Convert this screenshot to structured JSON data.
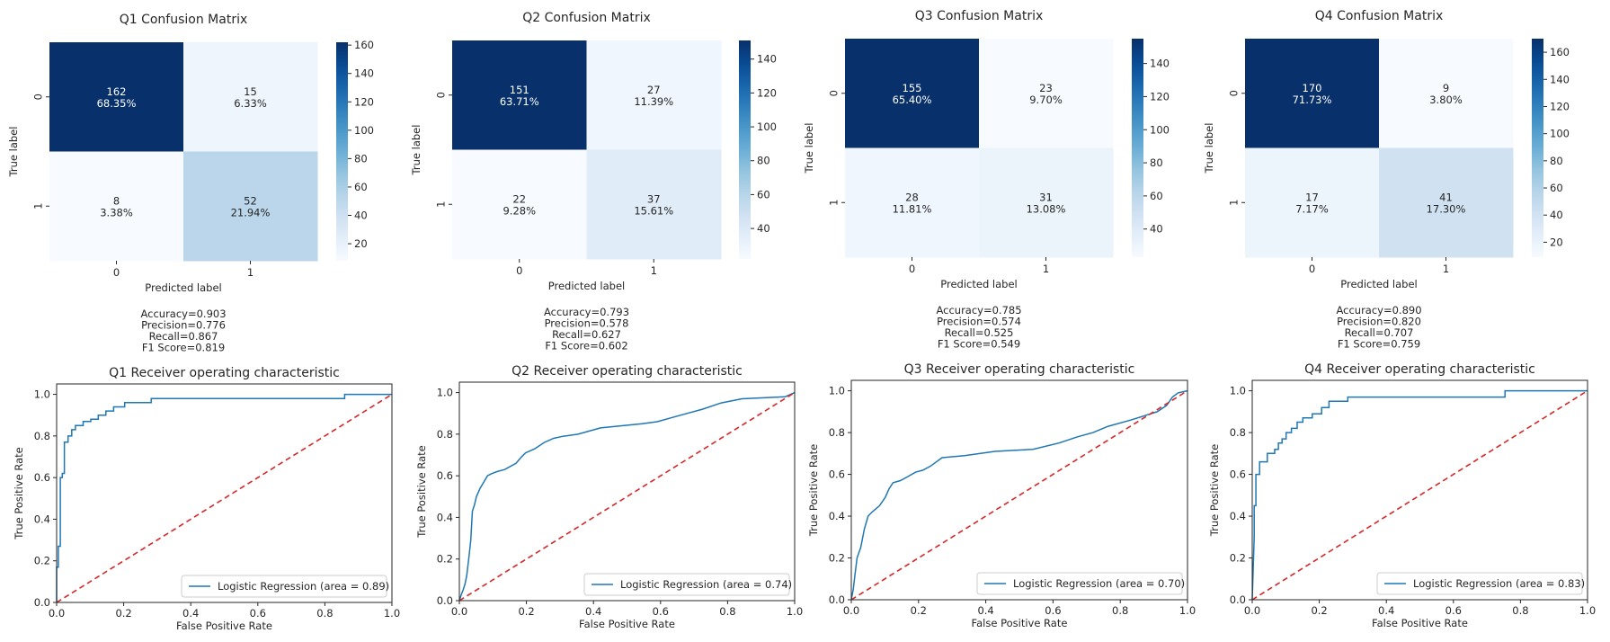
{
  "chart_data": [
    {
      "type": "heatmap",
      "title": "Q1 Confusion Matrix",
      "xlabel": "Predicted label",
      "ylabel": "True label",
      "x_ticks": [
        "0",
        "1"
      ],
      "y_ticks": [
        "0",
        "1"
      ],
      "values": [
        [
          162,
          15
        ],
        [
          8,
          52
        ]
      ],
      "percents": [
        [
          "68.35%",
          "6.33%"
        ],
        [
          "3.38%",
          "21.94%"
        ]
      ],
      "colorbar_ticks": [
        20,
        40,
        60,
        80,
        100,
        120,
        140,
        160
      ],
      "colorbar_range": [
        8,
        162
      ],
      "colormap": "Blues",
      "metrics": [
        "Accuracy=0.903",
        "Precision=0.776",
        "Recall=0.867",
        "F1 Score=0.819"
      ]
    },
    {
      "type": "heatmap",
      "title": "Q2 Confusion Matrix",
      "xlabel": "Predicted label",
      "ylabel": "True label",
      "x_ticks": [
        "0",
        "1"
      ],
      "y_ticks": [
        "0",
        "1"
      ],
      "values": [
        [
          151,
          27
        ],
        [
          22,
          37
        ]
      ],
      "percents": [
        [
          "63.71%",
          "11.39%"
        ],
        [
          "9.28%",
          "15.61%"
        ]
      ],
      "colorbar_ticks": [
        40,
        60,
        80,
        100,
        120,
        140
      ],
      "colorbar_range": [
        22,
        151
      ],
      "colormap": "Blues",
      "metrics": [
        "Accuracy=0.793",
        "Precision=0.578",
        "Recall=0.627",
        "F1 Score=0.602"
      ]
    },
    {
      "type": "heatmap",
      "title": "Q3 Confusion Matrix",
      "xlabel": "Predicted label",
      "ylabel": "True label",
      "x_ticks": [
        "0",
        "1"
      ],
      "y_ticks": [
        "0",
        "1"
      ],
      "values": [
        [
          155,
          23
        ],
        [
          28,
          31
        ]
      ],
      "percents": [
        [
          "65.40%",
          "9.70%"
        ],
        [
          "11.81%",
          "13.08%"
        ]
      ],
      "colorbar_ticks": [
        40,
        60,
        80,
        100,
        120,
        140
      ],
      "colorbar_range": [
        23,
        155
      ],
      "colormap": "Blues",
      "metrics": [
        "Accuracy=0.785",
        "Precision=0.574",
        "Recall=0.525",
        "F1 Score=0.549"
      ]
    },
    {
      "type": "heatmap",
      "title": "Q4 Confusion Matrix",
      "xlabel": "Predicted label",
      "ylabel": "True label",
      "x_ticks": [
        "0",
        "1"
      ],
      "y_ticks": [
        "0",
        "1"
      ],
      "values": [
        [
          170,
          9
        ],
        [
          17,
          41
        ]
      ],
      "percents": [
        [
          "71.73%",
          "3.80%"
        ],
        [
          "7.17%",
          "17.30%"
        ]
      ],
      "colorbar_ticks": [
        20,
        40,
        60,
        80,
        100,
        120,
        140,
        160
      ],
      "colorbar_range": [
        9,
        170
      ],
      "colormap": "Blues",
      "metrics": [
        "Accuracy=0.890",
        "Precision=0.820",
        "Recall=0.707",
        "F1 Score=0.759"
      ]
    },
    {
      "type": "line",
      "title": "Q1 Receiver operating characteristic",
      "xlabel": "False Positive Rate",
      "ylabel": "True Positive Rate",
      "xlim": [
        0.0,
        1.0
      ],
      "ylim": [
        0.0,
        1.05
      ],
      "x_ticks": [
        "0.0",
        "0.2",
        "0.4",
        "0.6",
        "0.8",
        "1.0"
      ],
      "y_ticks": [
        "0.0",
        "0.2",
        "0.4",
        "0.6",
        "0.8",
        "1.0"
      ],
      "legend_position": "lower-right",
      "series": [
        {
          "name": "Logistic Regression (area = 0.89)",
          "color": "#1f77b4",
          "x": [
            0.0,
            0.0,
            0.005,
            0.005,
            0.011,
            0.011,
            0.017,
            0.017,
            0.023,
            0.023,
            0.034,
            0.034,
            0.045,
            0.045,
            0.056,
            0.056,
            0.079,
            0.079,
            0.102,
            0.102,
            0.124,
            0.124,
            0.147,
            0.147,
            0.17,
            0.17,
            0.203,
            0.203,
            0.282,
            0.282,
            0.859,
            0.859,
            1.0
          ],
          "y": [
            0.0,
            0.17,
            0.17,
            0.27,
            0.27,
            0.6,
            0.6,
            0.62,
            0.62,
            0.77,
            0.77,
            0.8,
            0.8,
            0.83,
            0.83,
            0.85,
            0.85,
            0.87,
            0.87,
            0.88,
            0.88,
            0.9,
            0.9,
            0.92,
            0.92,
            0.94,
            0.94,
            0.96,
            0.96,
            0.98,
            0.98,
            1.0,
            1.0
          ]
        },
        {
          "name": "",
          "color": "#d62728",
          "dashed": true,
          "x": [
            0.0,
            1.0
          ],
          "y": [
            0.0,
            1.0
          ]
        }
      ]
    },
    {
      "type": "line",
      "title": "Q2 Receiver operating characteristic",
      "xlabel": "False Positive Rate",
      "ylabel": "True Positive Rate",
      "xlim": [
        0.0,
        1.0
      ],
      "ylim": [
        0.0,
        1.05
      ],
      "x_ticks": [
        "0.0",
        "0.2",
        "0.4",
        "0.6",
        "0.8",
        "1.0"
      ],
      "y_ticks": [
        "0.0",
        "0.2",
        "0.4",
        "0.6",
        "0.8",
        "1.0"
      ],
      "legend_position": "lower-right",
      "series": [
        {
          "name": "Logistic Regression (area = 0.74)",
          "color": "#1f77b4",
          "x": [
            0.0,
            0.006,
            0.011,
            0.017,
            0.022,
            0.028,
            0.034,
            0.039,
            0.045,
            0.051,
            0.062,
            0.073,
            0.084,
            0.096,
            0.112,
            0.135,
            0.169,
            0.185,
            0.197,
            0.225,
            0.253,
            0.281,
            0.309,
            0.354,
            0.421,
            0.545,
            0.59,
            0.635,
            0.68,
            0.725,
            0.781,
            0.843,
            0.972,
            1.0
          ],
          "y": [
            0.0,
            0.03,
            0.05,
            0.08,
            0.12,
            0.2,
            0.29,
            0.43,
            0.46,
            0.5,
            0.54,
            0.57,
            0.6,
            0.61,
            0.62,
            0.63,
            0.66,
            0.69,
            0.71,
            0.73,
            0.76,
            0.78,
            0.79,
            0.8,
            0.83,
            0.85,
            0.86,
            0.88,
            0.9,
            0.92,
            0.95,
            0.97,
            0.98,
            1.0
          ]
        },
        {
          "name": "",
          "color": "#d62728",
          "dashed": true,
          "x": [
            0.0,
            1.0
          ],
          "y": [
            0.0,
            1.0
          ]
        }
      ]
    },
    {
      "type": "line",
      "title": "Q3 Receiver operating characteristic",
      "xlabel": "False Positive Rate",
      "ylabel": "True Positive Rate",
      "xlim": [
        0.0,
        1.0
      ],
      "ylim": [
        0.0,
        1.05
      ],
      "x_ticks": [
        "0.0",
        "0.2",
        "0.4",
        "0.6",
        "0.8",
        "1.0"
      ],
      "y_ticks": [
        "0.0",
        "0.2",
        "0.4",
        "0.6",
        "0.8",
        "1.0"
      ],
      "legend_position": "lower-right",
      "series": [
        {
          "name": "Logistic Regression (area = 0.70)",
          "color": "#1f77b4",
          "x": [
            0.0,
            0.006,
            0.011,
            0.017,
            0.028,
            0.039,
            0.05,
            0.062,
            0.084,
            0.101,
            0.112,
            0.124,
            0.146,
            0.169,
            0.191,
            0.213,
            0.236,
            0.27,
            0.337,
            0.427,
            0.54,
            0.618,
            0.674,
            0.719,
            0.764,
            0.831,
            0.91,
            0.938,
            0.955,
            0.972,
            1.0
          ],
          "y": [
            0.0,
            0.05,
            0.12,
            0.2,
            0.25,
            0.34,
            0.4,
            0.42,
            0.45,
            0.49,
            0.53,
            0.56,
            0.57,
            0.59,
            0.61,
            0.62,
            0.64,
            0.68,
            0.69,
            0.71,
            0.72,
            0.75,
            0.78,
            0.8,
            0.83,
            0.86,
            0.9,
            0.93,
            0.97,
            0.99,
            1.0
          ]
        },
        {
          "name": "",
          "color": "#d62728",
          "dashed": true,
          "x": [
            0.0,
            1.0
          ],
          "y": [
            0.0,
            1.0
          ]
        }
      ]
    },
    {
      "type": "line",
      "title": "Q4 Receiver operating characteristic",
      "xlabel": "False Positive Rate",
      "ylabel": "True Positive Rate",
      "xlim": [
        0.0,
        1.0
      ],
      "ylim": [
        0.0,
        1.05
      ],
      "x_ticks": [
        "0.0",
        "0.2",
        "0.4",
        "0.6",
        "0.8",
        "1.0"
      ],
      "y_ticks": [
        "0.0",
        "0.2",
        "0.4",
        "0.6",
        "0.8",
        "1.0"
      ],
      "legend_position": "lower-right",
      "series": [
        {
          "name": "Logistic Regression (area = 0.83)",
          "color": "#1f77b4",
          "x": [
            0.0,
            0.006,
            0.006,
            0.011,
            0.011,
            0.022,
            0.022,
            0.045,
            0.045,
            0.067,
            0.067,
            0.078,
            0.078,
            0.089,
            0.089,
            0.101,
            0.101,
            0.117,
            0.117,
            0.134,
            0.134,
            0.151,
            0.151,
            0.179,
            0.179,
            0.207,
            0.207,
            0.229,
            0.229,
            0.285,
            0.285,
            0.754,
            0.754,
            1.0
          ],
          "y": [
            0.0,
            0.3,
            0.45,
            0.45,
            0.6,
            0.6,
            0.66,
            0.66,
            0.7,
            0.7,
            0.72,
            0.72,
            0.75,
            0.75,
            0.77,
            0.77,
            0.8,
            0.8,
            0.82,
            0.82,
            0.85,
            0.85,
            0.87,
            0.87,
            0.89,
            0.89,
            0.92,
            0.92,
            0.95,
            0.95,
            0.97,
            0.97,
            1.0,
            1.0
          ]
        },
        {
          "name": "",
          "color": "#d62728",
          "dashed": true,
          "x": [
            0.0,
            1.0
          ],
          "y": [
            0.0,
            1.0
          ]
        }
      ]
    }
  ]
}
